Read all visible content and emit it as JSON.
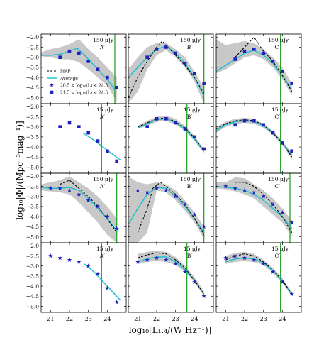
{
  "figure": {
    "xlabel": "log₁₀[L₁.₄/(W Hz⁻¹)]",
    "ylabel": "log₁₀|Φ|/(Mpc⁻³mag⁻¹)]",
    "xticks": [
      21,
      22,
      23,
      24
    ],
    "yticks": [
      -2.0,
      -2.5,
      -3.0,
      -3.5,
      -4.0,
      -4.5,
      -5.0
    ],
    "xlim": [
      20.5,
      25.0
    ],
    "ylim": [
      -5.3,
      -1.85
    ],
    "colors": {
      "avg": "#17becf",
      "map": "#000000",
      "marker": "#1f1fbf",
      "band": "#c8c8c8",
      "vline": "#2ca02c"
    }
  },
  "legend": {
    "entries": [
      "MAP",
      "Average",
      "20.5 < log₁₀(L) < 24.5",
      "21.5 < log₁₀(L) < 24.5"
    ]
  },
  "chart_data": [
    {
      "type": "line",
      "row": 0,
      "col": 0,
      "flux": "150 μJy",
      "field": "A′",
      "vline": 24.4,
      "marker": "square",
      "points": {
        "x": [
          21.5,
          22.0,
          22.5,
          23.0,
          23.5,
          24.0,
          24.5
        ],
        "y": [
          -3.0,
          -2.7,
          -2.8,
          -3.2,
          -3.6,
          -4.0,
          -4.5
        ]
      },
      "avg": {
        "x": [
          20.5,
          21.0,
          21.5,
          22.0,
          22.4,
          22.8,
          23.2,
          23.6,
          24.0,
          24.4
        ],
        "y": [
          -2.9,
          -2.9,
          -2.85,
          -2.7,
          -2.55,
          -2.9,
          -3.3,
          -3.7,
          -4.1,
          -4.6
        ]
      },
      "map": null,
      "band": {
        "x": [
          20.5,
          21.0,
          21.5,
          22.0,
          22.5,
          23.0,
          23.5,
          24.0,
          24.5
        ],
        "lo": [
          -2.95,
          -3.0,
          -3.1,
          -3.1,
          -3.25,
          -3.6,
          -4.0,
          -4.4,
          -5.2
        ],
        "hi": [
          -2.75,
          -2.6,
          -2.5,
          -2.35,
          -2.1,
          -2.6,
          -3.0,
          -3.5,
          -4.0
        ]
      }
    },
    {
      "type": "line",
      "row": 0,
      "col": 1,
      "flux": "150 μJy",
      "field": "B′",
      "vline": 24.5,
      "marker": "square",
      "points": {
        "x": [
          21.5,
          22.0,
          22.5,
          23.0,
          23.5,
          24.0,
          24.5
        ],
        "y": [
          -3.0,
          -2.6,
          -2.5,
          -2.8,
          -3.3,
          -3.8,
          -4.3
        ]
      },
      "avg": {
        "x": [
          20.5,
          21.0,
          21.5,
          22.0,
          22.5,
          23.0,
          23.5,
          24.0,
          24.5
        ],
        "y": [
          -4.0,
          -3.5,
          -3.0,
          -2.6,
          -2.45,
          -2.8,
          -3.3,
          -4.0,
          -4.9
        ]
      },
      "map": {
        "x": [
          20.5,
          21.0,
          21.5,
          22.0,
          22.3,
          22.6,
          23.0,
          23.5,
          24.0,
          24.5
        ],
        "y": [
          -5.0,
          -4.0,
          -3.2,
          -2.5,
          -2.2,
          -2.5,
          -2.9,
          -3.4,
          -4.0,
          -4.8
        ]
      },
      "band": {
        "x": [
          20.5,
          21.0,
          21.5,
          22.0,
          22.5,
          23.0,
          23.5,
          24.0,
          24.5
        ],
        "lo": [
          -5.3,
          -4.7,
          -3.6,
          -2.9,
          -2.65,
          -3.0,
          -3.5,
          -4.2,
          -5.3
        ],
        "hi": [
          -3.6,
          -3.0,
          -2.5,
          -2.3,
          -2.3,
          -2.6,
          -3.0,
          -3.7,
          -4.5
        ]
      }
    },
    {
      "type": "line",
      "row": 0,
      "col": 2,
      "flux": "150 μJy",
      "field": "C′",
      "vline": 23.9,
      "marker": "square",
      "points": {
        "x": [
          21.5,
          22.0,
          22.5,
          23.0,
          23.5,
          24.0,
          24.5
        ],
        "y": [
          -3.1,
          -2.7,
          -2.6,
          -2.8,
          -3.2,
          -3.7,
          -4.3
        ]
      },
      "avg": {
        "x": [
          20.5,
          21.0,
          21.5,
          22.0,
          22.5,
          23.0,
          23.5,
          24.0,
          24.5
        ],
        "y": [
          -3.7,
          -3.4,
          -3.1,
          -2.8,
          -2.65,
          -2.9,
          -3.3,
          -3.9,
          -4.6
        ]
      },
      "map": {
        "x": [
          21.5,
          22.0,
          22.5,
          23.0,
          23.5,
          24.0,
          24.5
        ],
        "y": [
          -3.0,
          -2.5,
          -2.0,
          -2.7,
          -3.2,
          -3.9,
          -4.7
        ]
      },
      "band": {
        "x": [
          20.5,
          21.0,
          21.5,
          22.0,
          22.5,
          23.0,
          23.5,
          24.0,
          24.5
        ],
        "lo": [
          -3.8,
          -3.6,
          -3.3,
          -3.0,
          -2.9,
          -3.1,
          -3.5,
          -4.1,
          -4.9
        ],
        "hi": [
          -2.1,
          -2.4,
          -2.3,
          -2.2,
          -2.3,
          -2.6,
          -3.0,
          -3.5,
          -4.3
        ]
      }
    },
    {
      "type": "line",
      "row": 1,
      "col": 0,
      "flux": "15 μJy",
      "field": "A′",
      "vline": 23.7,
      "marker": "square",
      "points": {
        "x": [
          21.5,
          22.0,
          22.5,
          23.0,
          23.5,
          24.0,
          24.5
        ],
        "y": [
          -3.0,
          -2.8,
          -3.0,
          -3.3,
          -3.7,
          -4.2,
          -4.7
        ]
      },
      "avg": {
        "x": [
          22.7,
          23.2,
          23.7,
          24.2,
          24.7
        ],
        "y": [
          -3.3,
          -3.6,
          -3.95,
          -4.3,
          -4.65
        ]
      },
      "map": null,
      "band": null
    },
    {
      "type": "line",
      "row": 1,
      "col": 1,
      "flux": "15 μJy",
      "field": "B′",
      "vline": 23.6,
      "marker": "square",
      "points": {
        "x": [
          21.5,
          22.0,
          22.5,
          23.0,
          23.5,
          24.0,
          24.5
        ],
        "y": [
          -3.0,
          -2.6,
          -2.6,
          -2.8,
          -3.1,
          -3.5,
          -4.1
        ]
      },
      "avg": {
        "x": [
          21.0,
          21.5,
          22.0,
          22.5,
          23.0,
          23.5,
          24.0,
          24.5
        ],
        "y": [
          -3.05,
          -2.85,
          -2.65,
          -2.6,
          -2.8,
          -3.1,
          -3.6,
          -4.2
        ]
      },
      "map": {
        "x": [
          21.0,
          21.5,
          22.0,
          22.5,
          23.0,
          23.5,
          24.0,
          24.5
        ],
        "y": [
          -3.0,
          -2.8,
          -2.6,
          -2.55,
          -2.75,
          -3.05,
          -3.55,
          -4.2
        ]
      },
      "band": {
        "x": [
          21.0,
          21.5,
          22.0,
          22.5,
          23.0,
          23.5,
          24.0,
          24.5
        ],
        "lo": [
          -3.1,
          -2.95,
          -2.75,
          -2.7,
          -2.9,
          -3.2,
          -3.7,
          -4.3
        ],
        "hi": [
          -2.95,
          -2.7,
          -2.5,
          -2.45,
          -2.6,
          -2.95,
          -3.45,
          -4.1
        ]
      }
    },
    {
      "type": "line",
      "row": 1,
      "col": 2,
      "flux": "15 μJy",
      "field": "C′",
      "vline": 23.9,
      "marker": "square",
      "points": {
        "x": [
          21.5,
          22.0,
          22.5,
          23.0,
          23.5,
          24.0,
          24.5
        ],
        "y": [
          -2.9,
          -2.7,
          -2.7,
          -2.9,
          -3.3,
          -3.8,
          -4.2
        ]
      },
      "avg": {
        "x": [
          20.5,
          21.0,
          21.5,
          22.0,
          22.5,
          23.0,
          23.5,
          24.0,
          24.5
        ],
        "y": [
          -3.2,
          -2.9,
          -2.75,
          -2.7,
          -2.75,
          -2.95,
          -3.3,
          -3.8,
          -4.4
        ]
      },
      "map": {
        "x": [
          20.5,
          21.0,
          21.5,
          22.0,
          22.5,
          23.0,
          23.5,
          24.0,
          24.5
        ],
        "y": [
          -3.1,
          -2.85,
          -2.7,
          -2.65,
          -2.7,
          -2.9,
          -3.3,
          -3.8,
          -4.5
        ]
      },
      "band": {
        "x": [
          20.5,
          21.0,
          21.5,
          22.0,
          22.5,
          23.0,
          23.5,
          24.0,
          24.5
        ],
        "lo": [
          -3.3,
          -3.0,
          -2.85,
          -2.8,
          -2.85,
          -3.05,
          -3.4,
          -3.9,
          -4.6
        ],
        "hi": [
          -3.0,
          -2.75,
          -2.6,
          -2.55,
          -2.6,
          -2.85,
          -3.2,
          -3.7,
          -4.3
        ]
      }
    },
    {
      "type": "line",
      "row": 2,
      "col": 0,
      "flux": "150 μJy",
      "field": "A′",
      "vline": 24.5,
      "marker": "star",
      "points": {
        "x": [
          21.0,
          21.5,
          22.0,
          22.5,
          23.0,
          23.5,
          24.0,
          24.5
        ],
        "y": [
          -2.6,
          -2.6,
          -2.7,
          -2.9,
          -3.2,
          -3.5,
          -4.0,
          -4.6
        ]
      },
      "avg": {
        "x": [
          20.5,
          21.0,
          21.5,
          22.0,
          22.5,
          23.0,
          23.5,
          24.0,
          24.5
        ],
        "y": [
          -2.55,
          -2.6,
          -2.6,
          -2.55,
          -2.7,
          -3.1,
          -3.6,
          -4.1,
          -4.7
        ]
      },
      "map": {
        "x": [
          21.5,
          22.0,
          22.5,
          23.0,
          23.5,
          24.0,
          24.5
        ],
        "y": [
          -2.4,
          -2.2,
          -2.6,
          -3.0,
          -3.5,
          -4.1,
          -4.8
        ]
      },
      "band": {
        "x": [
          20.5,
          21.0,
          21.5,
          22.0,
          22.5,
          23.0,
          23.5,
          24.0,
          24.5
        ],
        "lo": [
          -2.7,
          -2.75,
          -2.8,
          -2.9,
          -3.3,
          -3.8,
          -4.3,
          -4.9,
          -5.3
        ],
        "hi": [
          -2.4,
          -2.3,
          -2.2,
          -2.0,
          -2.3,
          -2.6,
          -3.0,
          -3.5,
          -4.1
        ]
      }
    },
    {
      "type": "line",
      "row": 2,
      "col": 1,
      "flux": "150 μJy",
      "field": "B′",
      "vline": 24.5,
      "marker": "star",
      "points": {
        "x": [
          21.0,
          21.5,
          22.0,
          22.5,
          23.0,
          23.5,
          24.0,
          24.5
        ],
        "y": [
          -2.7,
          -2.8,
          -2.6,
          -2.7,
          -3.0,
          -3.4,
          -3.9,
          -4.5
        ]
      },
      "avg": {
        "x": [
          20.5,
          21.0,
          21.5,
          22.0,
          22.5,
          23.0,
          23.5,
          24.0,
          24.5
        ],
        "y": [
          -4.4,
          -3.6,
          -2.9,
          -2.55,
          -2.6,
          -3.0,
          -3.5,
          -4.1,
          -4.8
        ]
      },
      "map": {
        "x": [
          21.0,
          21.5,
          21.8,
          22.2,
          22.5,
          23.0,
          23.5,
          24.0,
          24.5
        ],
        "y": [
          -4.8,
          -3.6,
          -2.6,
          -2.3,
          -2.5,
          -2.9,
          -3.4,
          -4.1,
          -4.9
        ]
      },
      "band": {
        "x": [
          20.5,
          21.0,
          21.5,
          22.0,
          22.5,
          23.0,
          23.5,
          24.0,
          24.5
        ],
        "lo": [
          -5.3,
          -5.3,
          -4.8,
          -2.7,
          -2.8,
          -3.2,
          -3.7,
          -4.3,
          -5.1
        ],
        "hi": [
          -2.0,
          -2.3,
          -2.4,
          -2.3,
          -2.4,
          -2.7,
          -3.2,
          -3.8,
          -4.5
        ]
      }
    },
    {
      "type": "line",
      "row": 2,
      "col": 2,
      "flux": "150 μJy",
      "field": "C′",
      "vline": 24.4,
      "marker": "star",
      "points": {
        "x": [
          21.0,
          21.5,
          22.0,
          22.5,
          23.0,
          23.5,
          24.0,
          24.5
        ],
        "y": [
          -2.5,
          -2.6,
          -2.7,
          -2.8,
          -3.0,
          -3.4,
          -3.8,
          -4.3
        ]
      },
      "avg": {
        "x": [
          20.5,
          21.0,
          21.5,
          22.0,
          22.5,
          23.0,
          23.5,
          24.0,
          24.5
        ],
        "y": [
          -2.5,
          -2.55,
          -2.6,
          -2.7,
          -2.9,
          -3.2,
          -3.6,
          -4.0,
          -4.6
        ]
      },
      "map": {
        "x": [
          21.5,
          22.0,
          22.5,
          23.0,
          23.5,
          24.0,
          24.5
        ],
        "y": [
          -2.3,
          -2.3,
          -2.5,
          -2.9,
          -3.4,
          -4.0,
          -4.8
        ]
      },
      "band": {
        "x": [
          20.5,
          21.0,
          21.5,
          22.0,
          22.5,
          23.0,
          23.5,
          24.0,
          24.5
        ],
        "lo": [
          -2.6,
          -2.65,
          -2.75,
          -2.9,
          -3.1,
          -3.5,
          -3.9,
          -4.3,
          -5.0
        ],
        "hi": [
          -2.3,
          -2.3,
          -2.05,
          -2.1,
          -2.4,
          -2.7,
          -3.1,
          -3.6,
          -4.2
        ]
      }
    },
    {
      "type": "line",
      "row": 3,
      "col": 0,
      "flux": "15 μJy",
      "field": "A′",
      "vline": 23.7,
      "marker": "star",
      "points": {
        "x": [
          21.0,
          21.5,
          22.0,
          22.5,
          23.0,
          23.5,
          24.0,
          24.5
        ],
        "y": [
          -2.5,
          -2.6,
          -2.7,
          -2.8,
          -3.0,
          -3.4,
          -4.1,
          -4.8
        ]
      },
      "avg": {
        "x": [
          22.8,
          23.3,
          23.8,
          24.3,
          24.7
        ],
        "y": [
          -2.9,
          -3.3,
          -3.8,
          -4.3,
          -4.7
        ]
      },
      "map": null,
      "band": null
    },
    {
      "type": "line",
      "row": 3,
      "col": 1,
      "flux": "15 μJy",
      "field": "B′",
      "vline": 23.6,
      "marker": "star",
      "points": {
        "x": [
          21.0,
          21.5,
          22.0,
          22.5,
          23.0,
          23.5,
          24.0,
          24.5
        ],
        "y": [
          -2.8,
          -2.7,
          -2.6,
          -2.7,
          -2.9,
          -3.3,
          -3.8,
          -4.5
        ]
      },
      "avg": {
        "x": [
          21.0,
          21.5,
          22.0,
          22.5,
          23.0,
          23.5,
          24.0,
          24.5
        ],
        "y": [
          -2.8,
          -2.65,
          -2.55,
          -2.55,
          -2.8,
          -3.2,
          -3.7,
          -4.4
        ]
      },
      "map": {
        "x": [
          21.0,
          21.5,
          22.0,
          22.5,
          23.0,
          23.5,
          24.0,
          24.5
        ],
        "y": [
          -2.6,
          -2.45,
          -2.35,
          -2.4,
          -2.7,
          -3.1,
          -3.7,
          -4.4
        ]
      },
      "band": {
        "x": [
          21.0,
          21.5,
          22.0,
          22.5,
          23.0,
          23.5,
          24.0,
          24.5
        ],
        "lo": [
          -2.9,
          -2.8,
          -2.75,
          -2.8,
          -2.95,
          -3.3,
          -3.8,
          -4.5
        ],
        "hi": [
          -2.4,
          -2.3,
          -2.25,
          -2.3,
          -2.55,
          -3.0,
          -3.55,
          -4.25
        ]
      }
    },
    {
      "type": "line",
      "row": 3,
      "col": 2,
      "flux": "15 μJy",
      "field": "C′",
      "vline": 23.9,
      "marker": "star",
      "points": {
        "x": [
          21.0,
          21.5,
          22.0,
          22.5,
          23.0,
          23.5,
          24.0,
          24.5
        ],
        "y": [
          -2.6,
          -2.5,
          -2.6,
          -2.7,
          -2.9,
          -3.3,
          -3.8,
          -4.4
        ]
      },
      "avg": {
        "x": [
          21.0,
          21.5,
          22.0,
          22.5,
          23.0,
          23.5,
          24.0,
          24.5
        ],
        "y": [
          -2.8,
          -2.65,
          -2.6,
          -2.65,
          -2.85,
          -3.25,
          -3.75,
          -4.4
        ]
      },
      "map": {
        "x": [
          21.0,
          21.5,
          22.0,
          22.5,
          23.0,
          23.5,
          24.0,
          24.5
        ],
        "y": [
          -2.7,
          -2.5,
          -2.4,
          -2.5,
          -2.8,
          -3.2,
          -3.7,
          -4.4
        ]
      },
      "band": {
        "x": [
          21.0,
          21.5,
          22.0,
          22.5,
          23.0,
          23.5,
          24.0,
          24.5
        ],
        "lo": [
          -2.9,
          -2.8,
          -2.75,
          -2.8,
          -2.95,
          -3.35,
          -3.85,
          -4.5
        ],
        "hi": [
          -2.5,
          -2.35,
          -2.3,
          -2.4,
          -2.7,
          -3.1,
          -3.6,
          -4.3
        ]
      }
    }
  ]
}
